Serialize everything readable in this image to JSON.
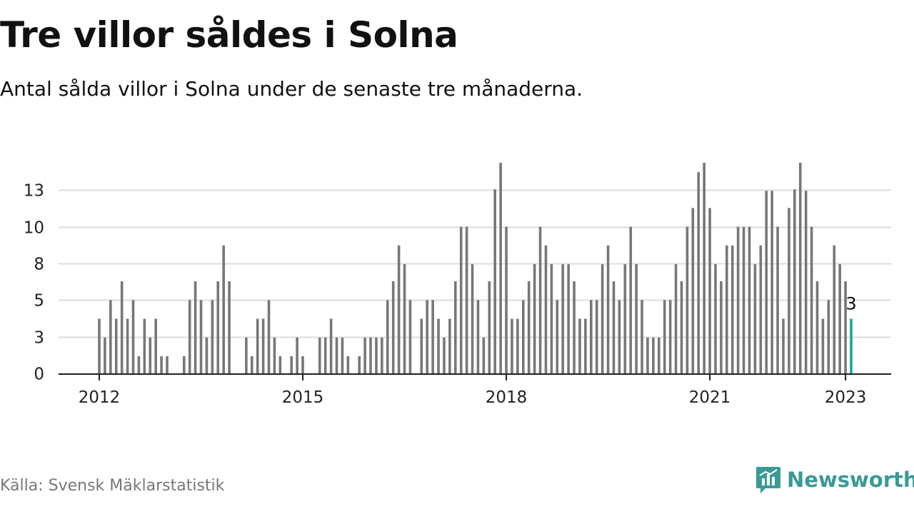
{
  "header": {
    "title": "Tre villor såldes i Solna",
    "subtitle": "Antal sålda villor i Solna under de senaste tre månaderna."
  },
  "footer": {
    "source": "Källa: Svensk Mäklarstatistik",
    "logo_text": "Newsworthy",
    "logo_icon": "newsworthy-chart-bubble-icon"
  },
  "colors": {
    "bar": "#777779",
    "highlight": "#1aa5a0",
    "grid": "#dddddd",
    "axis": "#222222",
    "brand": "#3a9a96"
  },
  "chart_data": {
    "type": "bar",
    "title": "",
    "xlabel": "",
    "ylabel": "",
    "x_ticks": [
      "2012",
      "2015",
      "2018",
      "2021",
      "2023"
    ],
    "y_ticks": [
      0,
      3,
      5,
      8,
      10,
      13
    ],
    "ylim": [
      0,
      13.5
    ],
    "grid": true,
    "highlight_label": "3",
    "series": [
      {
        "values": [
          3.5,
          2.3,
          4.7,
          3.5,
          5.9,
          3.5,
          4.7,
          1.1,
          3.5,
          2.3,
          3.5,
          1.1,
          1.1,
          0,
          0,
          1.1,
          4.7,
          5.9,
          4.7,
          2.3,
          4.7,
          5.9,
          8.2,
          5.9,
          0,
          0,
          2.3,
          1.1,
          3.5,
          3.5,
          4.7,
          2.3,
          1.1,
          0,
          1.1,
          2.3,
          1.1,
          0,
          0,
          2.3,
          2.3,
          3.5,
          2.3,
          2.3,
          1.1,
          0,
          1.1,
          2.3,
          2.3,
          2.3,
          2.3,
          4.7,
          5.9,
          8.2,
          7.0,
          4.7,
          0,
          3.5,
          4.7,
          4.7,
          3.5,
          2.3,
          3.5,
          5.9,
          9.4,
          9.4,
          7.0,
          4.7,
          2.3,
          5.9,
          11.8,
          14.0,
          9.4,
          3.5,
          3.5,
          4.7,
          5.9,
          7.0,
          9.4,
          8.2,
          7.0,
          4.7,
          7.0,
          7.0,
          5.9,
          3.5,
          3.5,
          4.7,
          4.7,
          7.0,
          8.2,
          5.9,
          4.7,
          7.0,
          9.4,
          7.0,
          4.7,
          2.3,
          2.3,
          2.3,
          4.7,
          4.7,
          7.0,
          5.9,
          9.4,
          10.6,
          12.9,
          14.0,
          10.6,
          7.0,
          5.9,
          8.2,
          8.2,
          9.4,
          9.4,
          9.4,
          7.0,
          8.2,
          11.7,
          11.7,
          9.4,
          3.5,
          10.6,
          11.8,
          14.0,
          11.7,
          9.4,
          5.9,
          3.5,
          4.7,
          8.2,
          7.0,
          5.9,
          3.5
        ]
      }
    ]
  }
}
